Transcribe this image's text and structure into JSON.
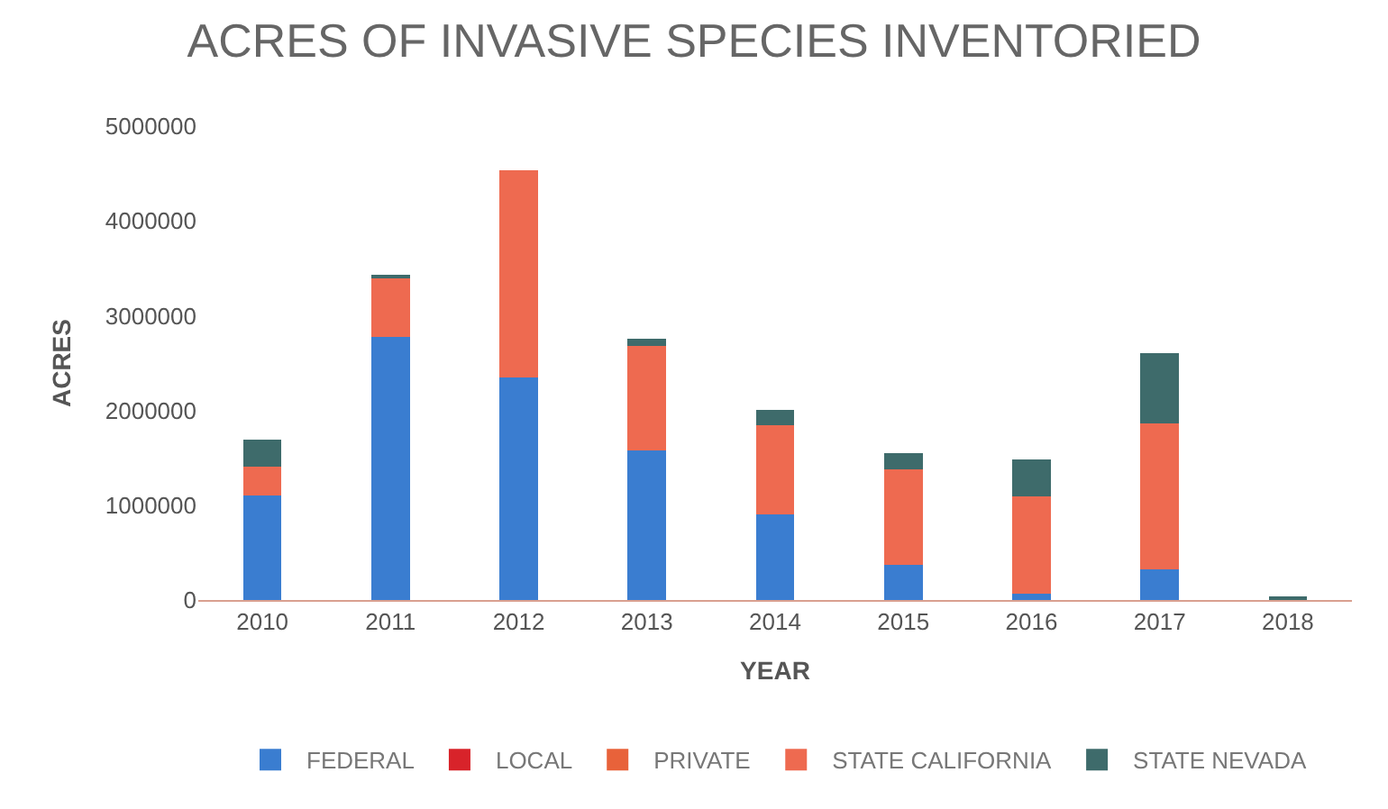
{
  "chart_data": {
    "type": "bar",
    "title": "ACRES OF INVASIVE SPECIES INVENTORIED",
    "xlabel": "YEAR",
    "ylabel": "ACRES",
    "categories": [
      "2010",
      "2011",
      "2012",
      "2013",
      "2014",
      "2015",
      "2016",
      "2017",
      "2018"
    ],
    "stacked": true,
    "series": [
      {
        "name": "FEDERAL",
        "color": "#3a7dd0",
        "values": [
          1100000,
          2780000,
          2350000,
          1580000,
          900000,
          370000,
          70000,
          320000,
          0
        ]
      },
      {
        "name": "LOCAL",
        "color": "#d8232a",
        "values": [
          0,
          0,
          0,
          0,
          0,
          0,
          0,
          0,
          0
        ]
      },
      {
        "name": "PRIVATE",
        "color": "#e8623a",
        "values": [
          0,
          0,
          0,
          0,
          0,
          0,
          0,
          0,
          0
        ]
      },
      {
        "name": "STATE CALIFORNIA",
        "color": "#ee6a50",
        "values": [
          310000,
          610000,
          2180000,
          1100000,
          940000,
          1010000,
          1020000,
          1540000,
          0
        ]
      },
      {
        "name": "STATE NEVADA",
        "color": "#3e6b6b",
        "values": [
          280000,
          40000,
          0,
          80000,
          170000,
          170000,
          390000,
          740000,
          20000
        ]
      }
    ],
    "ylim": [
      0,
      5000000
    ],
    "yticks": [
      0,
      1000000,
      2000000,
      3000000,
      4000000,
      5000000
    ],
    "legend": "bottom"
  }
}
